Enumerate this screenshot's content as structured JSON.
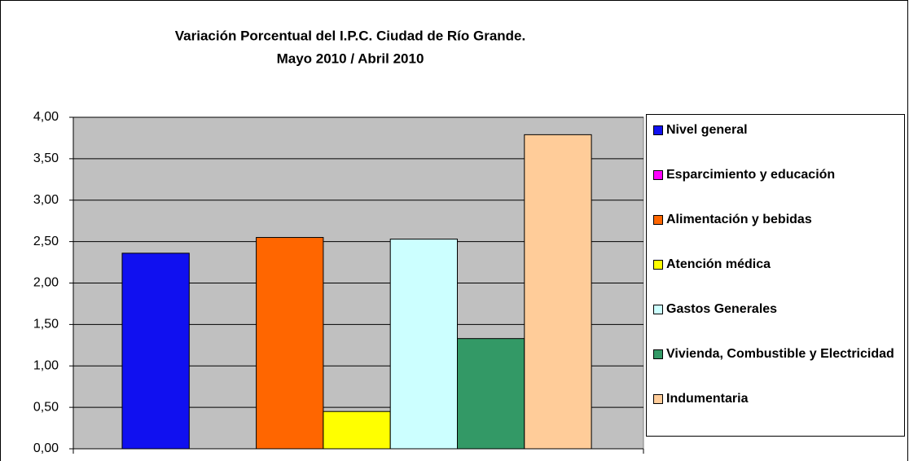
{
  "chart_data": {
    "type": "bar",
    "title": "Variación Porcentual del I.P.C. Ciudad de Río Grande.",
    "subtitle": "Mayo 2010 / Abril 2010",
    "series": [
      {
        "name": "Nivel general",
        "color": "#1010f0",
        "values": [
          2.36
        ]
      },
      {
        "name": "Esparcimiento y educación",
        "color": "#ff00ff",
        "values": [
          0
        ]
      },
      {
        "name": "Alimentación y bebidas",
        "color": "#ff6600",
        "values": [
          2.55
        ]
      },
      {
        "name": "Atención médica",
        "color": "#ffff00",
        "values": [
          0.45
        ]
      },
      {
        "name": "Gastos Generales",
        "color": "#ccffff",
        "values": [
          2.53
        ]
      },
      {
        "name": "Vivienda, Combustible y Electricidad",
        "color": "#339966",
        "values": [
          1.33
        ]
      },
      {
        "name": "Indumentaria",
        "color": "#ffcc99",
        "values": [
          3.79
        ]
      }
    ],
    "ylim": [
      0,
      4
    ],
    "yticks": [
      {
        "value": 0,
        "label": "0,00"
      },
      {
        "value": 0.5,
        "label": "0,50"
      },
      {
        "value": 1,
        "label": "1,00"
      },
      {
        "value": 1.5,
        "label": "1,50"
      },
      {
        "value": 2,
        "label": "2,00"
      },
      {
        "value": 2.5,
        "label": "2,50"
      },
      {
        "value": 3,
        "label": "3,00"
      },
      {
        "value": 3.5,
        "label": "3,50"
      },
      {
        "value": 4,
        "label": "4,00"
      }
    ],
    "grid": true,
    "plot_background": "#c0c0c0",
    "legend": "right"
  }
}
